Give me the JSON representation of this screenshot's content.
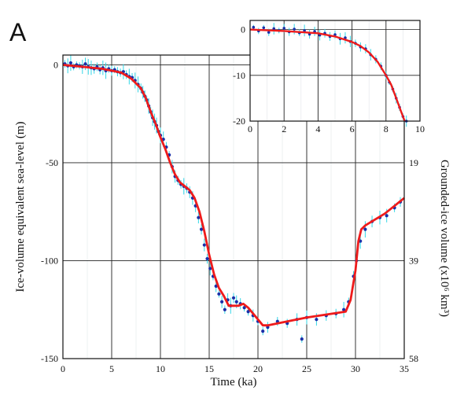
{
  "panel_label": "A",
  "chart_data": [
    {
      "id": "main",
      "type": "scatter",
      "title": "",
      "xlabel": "Time (ka)",
      "ylabel": "Ice-volume equivalent sea-level (m)",
      "y2label": "Grounded-ice volume (x10⁶ km³)",
      "xlim": [
        0,
        35
      ],
      "ylim": [
        -150,
        5
      ],
      "xticks": [
        0,
        5,
        10,
        15,
        20,
        25,
        30,
        35
      ],
      "yticks": [
        0,
        -50,
        -100,
        -150
      ],
      "y2ticks": [
        {
          "at": -50,
          "label": "19"
        },
        {
          "at": -100,
          "label": "39"
        },
        {
          "at": -150,
          "label": "58"
        }
      ],
      "grid": true,
      "series": [
        {
          "kind": "fit-line",
          "color": "#ee1b1b",
          "x": [
            0,
            2,
            4,
            6,
            7,
            8,
            8.5,
            9,
            9.5,
            10,
            10.5,
            11,
            11.5,
            12,
            12.5,
            13,
            13.5,
            14,
            14.5,
            15,
            15.5,
            16,
            16.5,
            17,
            18,
            18.5,
            19,
            19.5,
            20,
            20.5,
            21,
            25,
            29,
            29.5,
            30,
            30.3,
            30.6,
            31,
            32,
            33,
            34,
            35
          ],
          "y": [
            0,
            -1,
            -2,
            -4,
            -7,
            -12,
            -17,
            -24,
            -30,
            -37,
            -43,
            -50,
            -56,
            -60,
            -62,
            -64,
            -68,
            -75,
            -85,
            -97,
            -107,
            -114,
            -118,
            -123,
            -123,
            -122,
            -124,
            -127,
            -130,
            -133,
            -133,
            -129,
            -126,
            -120,
            -105,
            -90,
            -84,
            -82,
            -79,
            -76,
            -72,
            -68
          ]
        },
        {
          "kind": "observations",
          "color": "#1a2fa8",
          "error_color": "#33d6e6",
          "points": [
            [
              0.2,
              0.5
            ],
            [
              0.5,
              -0.5
            ],
            [
              0.8,
              1
            ],
            [
              1.1,
              -1
            ],
            [
              1.4,
              0
            ],
            [
              1.7,
              -0.5
            ],
            [
              2,
              -1
            ],
            [
              2.3,
              0.5
            ],
            [
              2.6,
              -1
            ],
            [
              2.9,
              -1.5
            ],
            [
              3.2,
              -2
            ],
            [
              3.5,
              -1
            ],
            [
              3.8,
              -2.5
            ],
            [
              4.1,
              -1.5
            ],
            [
              4.4,
              -3
            ],
            [
              4.7,
              -2
            ],
            [
              5,
              -3
            ],
            [
              5.3,
              -2.5
            ],
            [
              5.6,
              -3.5
            ],
            [
              5.9,
              -4
            ],
            [
              6.2,
              -3.5
            ],
            [
              6.5,
              -5
            ],
            [
              6.8,
              -6
            ],
            [
              7.1,
              -6.5
            ],
            [
              7.4,
              -8
            ],
            [
              7.7,
              -10
            ],
            [
              8,
              -12
            ],
            [
              8.2,
              -14
            ],
            [
              8.4,
              -16
            ],
            [
              8.6,
              -18
            ],
            [
              8.8,
              -21
            ],
            [
              9,
              -24
            ],
            [
              9.2,
              -27
            ],
            [
              9.4,
              -29
            ],
            [
              9.6,
              -31
            ],
            [
              9.8,
              -34
            ],
            [
              10,
              -36
            ],
            [
              10.3,
              -38
            ],
            [
              10.6,
              -42
            ],
            [
              10.9,
              -46
            ],
            [
              11.2,
              -52
            ],
            [
              11.5,
              -57
            ],
            [
              11.8,
              -59
            ],
            [
              12.1,
              -61
            ],
            [
              12.4,
              -62
            ],
            [
              12.7,
              -63
            ],
            [
              13,
              -65
            ],
            [
              13.3,
              -68
            ],
            [
              13.6,
              -72
            ],
            [
              13.9,
              -78
            ],
            [
              14.2,
              -84
            ],
            [
              14.5,
              -92
            ],
            [
              14.8,
              -99
            ],
            [
              15.1,
              -104
            ],
            [
              15.4,
              -108
            ],
            [
              15.7,
              -113
            ],
            [
              16,
              -117
            ],
            [
              16.3,
              -121
            ],
            [
              16.6,
              -125
            ],
            [
              16.9,
              -120
            ],
            [
              17.2,
              -123
            ],
            [
              17.5,
              -119
            ],
            [
              17.8,
              -121
            ],
            [
              18.2,
              -122
            ],
            [
              18.6,
              -124
            ],
            [
              19,
              -126
            ],
            [
              19.5,
              -128
            ],
            [
              20,
              -131
            ],
            [
              20.5,
              -136
            ],
            [
              21,
              -134
            ],
            [
              22,
              -131
            ],
            [
              23,
              -132
            ],
            [
              24,
              -130
            ],
            [
              24.5,
              -140
            ],
            [
              25,
              -129
            ],
            [
              26,
              -130
            ],
            [
              27,
              -128
            ],
            [
              28,
              -127
            ],
            [
              28.8,
              -125
            ],
            [
              29.3,
              -121
            ],
            [
              29.8,
              -108
            ],
            [
              30.1,
              -100
            ],
            [
              30.5,
              -90
            ],
            [
              31,
              -84
            ],
            [
              31.7,
              -80
            ],
            [
              32.5,
              -78
            ],
            [
              33.2,
              -77
            ],
            [
              34,
              -73
            ],
            [
              34.6,
              -70
            ]
          ]
        }
      ]
    },
    {
      "id": "inset",
      "type": "scatter",
      "title": "",
      "xlabel": "",
      "ylabel": "",
      "xlim": [
        0,
        10
      ],
      "ylim": [
        -20,
        2
      ],
      "xticks": [
        0,
        2,
        4,
        6,
        8,
        10
      ],
      "yticks": [
        0,
        -10,
        -20
      ],
      "grid": true,
      "series": [
        {
          "kind": "fit-line",
          "color": "#ee1b1b",
          "x": [
            0,
            2,
            4,
            5,
            6,
            6.5,
            7,
            7.5,
            8,
            8.3,
            8.6,
            8.9,
            9.1
          ],
          "y": [
            0,
            -0.3,
            -0.8,
            -1.5,
            -2.7,
            -3.6,
            -5,
            -7,
            -10,
            -12,
            -15,
            -18,
            -20
          ]
        },
        {
          "kind": "observations",
          "color": "#1a2fa8",
          "error_color": "#33d6e6",
          "points": [
            [
              0.2,
              0.5
            ],
            [
              0.5,
              -0.3
            ],
            [
              0.8,
              0.4
            ],
            [
              1.1,
              -0.6
            ],
            [
              1.4,
              0.2
            ],
            [
              1.7,
              -0.2
            ],
            [
              2,
              0.3
            ],
            [
              2.3,
              -0.5
            ],
            [
              2.6,
              0.1
            ],
            [
              2.9,
              -0.7
            ],
            [
              3.2,
              -0.2
            ],
            [
              3.5,
              -1
            ],
            [
              3.8,
              -0.4
            ],
            [
              4.1,
              -1.2
            ],
            [
              4.4,
              -0.8
            ],
            [
              4.7,
              -1.5
            ],
            [
              5,
              -1.1
            ],
            [
              5.3,
              -2
            ],
            [
              5.6,
              -1.8
            ],
            [
              5.9,
              -2.6
            ],
            [
              6.2,
              -3
            ],
            [
              6.5,
              -3.8
            ],
            [
              6.8,
              -4.2
            ],
            [
              7.1,
              -5.5
            ],
            [
              7.4,
              -6.5
            ],
            [
              7.7,
              -8
            ],
            [
              8,
              -10
            ],
            [
              8.2,
              -11.5
            ],
            [
              8.4,
              -13
            ],
            [
              8.6,
              -15
            ],
            [
              8.8,
              -17
            ],
            [
              9,
              -19
            ],
            [
              9.2,
              -20
            ]
          ]
        }
      ]
    }
  ]
}
